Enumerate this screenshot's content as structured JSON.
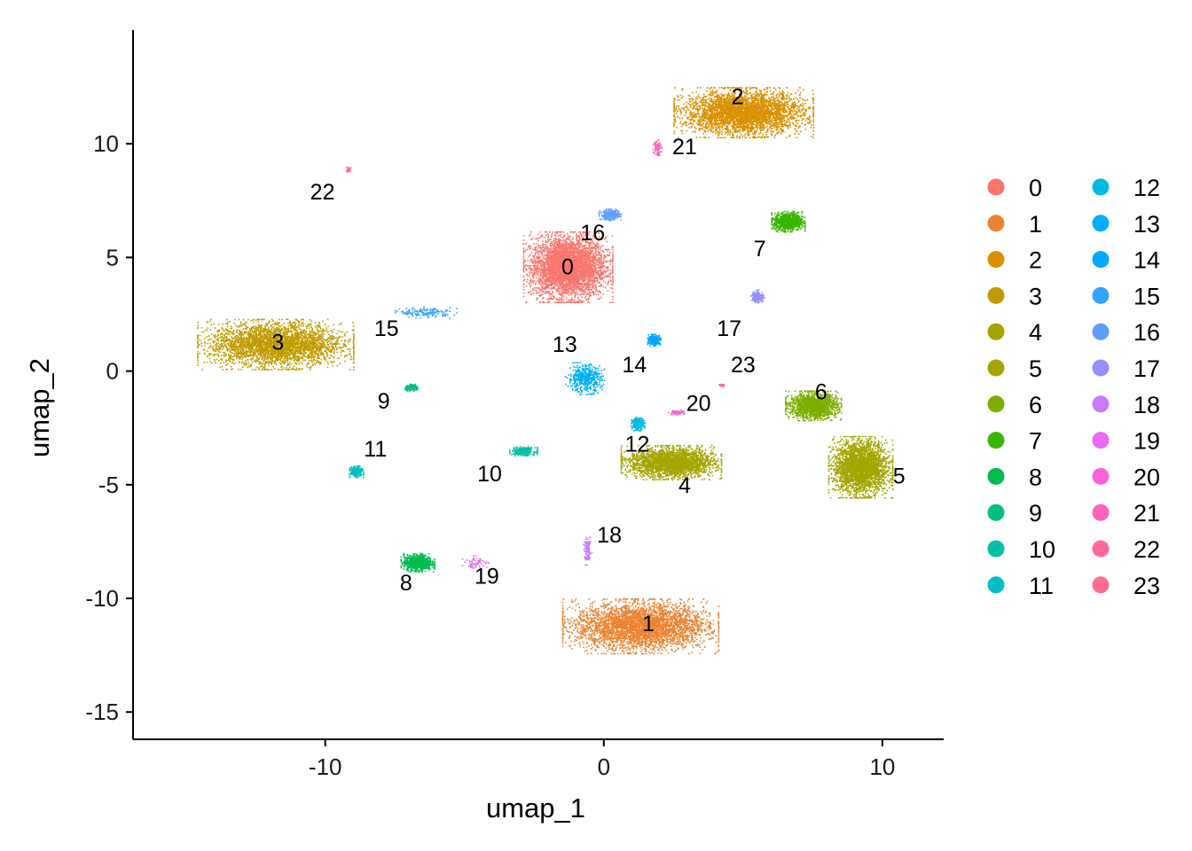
{
  "chart_data": {
    "type": "scatter",
    "title": "",
    "xlabel": "umap_1",
    "ylabel": "umap_2",
    "xlim": [
      -16.9,
      12.2
    ],
    "ylim": [
      -16.2,
      15.0
    ],
    "xticks": [
      -10,
      0,
      10
    ],
    "xtick_labels": [
      "-10",
      "0",
      "10"
    ],
    "yticks": [
      -15,
      -10,
      -5,
      0,
      5,
      10
    ],
    "ytick_labels": [
      "-15",
      "-10",
      "-5",
      "0",
      "5",
      "10"
    ],
    "grid": false,
    "legend_position": "right",
    "legend_columns": 2,
    "clusters": [
      {
        "id": "0",
        "label": "0",
        "color": "#F8766D",
        "center": [
          -1.3,
          4.6
        ],
        "spread": [
          3.2,
          3.1
        ],
        "n": 4200,
        "label_pos": [
          -1.3,
          4.6
        ]
      },
      {
        "id": "1",
        "label": "1",
        "color": "#EA8331",
        "center": [
          1.3,
          -11.2
        ],
        "spread": [
          5.6,
          2.4
        ],
        "n": 3800,
        "label_pos": [
          1.6,
          -11.1
        ]
      },
      {
        "id": "2",
        "label": "2",
        "color": "#D89000",
        "center": [
          5.0,
          11.4
        ],
        "spread": [
          5.0,
          2.2
        ],
        "n": 3600,
        "label_pos": [
          4.8,
          12.1
        ]
      },
      {
        "id": "3",
        "label": "3",
        "color": "#C09B00",
        "center": [
          -11.8,
          1.2
        ],
        "spread": [
          5.6,
          2.2
        ],
        "n": 3400,
        "label_pos": [
          -11.7,
          1.3
        ]
      },
      {
        "id": "4",
        "label": "4",
        "color": "#A3A500",
        "center": [
          2.4,
          -4.0
        ],
        "spread": [
          3.6,
          1.5
        ],
        "n": 2600,
        "label_pos": [
          2.9,
          -5.0
        ]
      },
      {
        "id": "5",
        "label": "5",
        "color": "#A3A500",
        "center": [
          9.2,
          -4.2
        ],
        "spread": [
          2.3,
          2.7
        ],
        "n": 2800,
        "label_pos": [
          10.6,
          -4.6
        ]
      },
      {
        "id": "6",
        "label": "6",
        "color": "#7CAE00",
        "center": [
          7.5,
          -1.5
        ],
        "spread": [
          2.0,
          1.3
        ],
        "n": 1600,
        "label_pos": [
          7.8,
          -0.9
        ]
      },
      {
        "id": "7",
        "label": "7",
        "color": "#39B600",
        "center": [
          6.6,
          6.6
        ],
        "spread": [
          1.2,
          0.9
        ],
        "n": 900,
        "label_pos": [
          5.6,
          5.4
        ]
      },
      {
        "id": "8",
        "label": "8",
        "color": "#00BB4E",
        "center": [
          -6.7,
          -8.4
        ],
        "spread": [
          1.2,
          0.8
        ],
        "n": 800,
        "label_pos": [
          -7.1,
          -9.3
        ]
      },
      {
        "id": "9",
        "label": "9",
        "color": "#00BF7D",
        "center": [
          -6.9,
          -0.7
        ],
        "spread": [
          0.6,
          0.3
        ],
        "n": 120,
        "label_pos": [
          -7.9,
          -1.3
        ]
      },
      {
        "id": "10",
        "label": "10",
        "color": "#00C1A3",
        "center": [
          -2.9,
          -3.5
        ],
        "spread": [
          1.0,
          0.4
        ],
        "n": 260,
        "label_pos": [
          -4.1,
          -4.5
        ]
      },
      {
        "id": "11",
        "label": "11",
        "color": "#00BFC4",
        "center": [
          -8.9,
          -4.4
        ],
        "spread": [
          0.5,
          0.5
        ],
        "n": 320,
        "label_pos": [
          -8.2,
          -3.4
        ]
      },
      {
        "id": "12",
        "label": "12",
        "color": "#00BAE0",
        "center": [
          1.2,
          -2.3
        ],
        "spread": [
          0.5,
          0.6
        ],
        "n": 260,
        "label_pos": [
          1.2,
          -3.2
        ]
      },
      {
        "id": "13",
        "label": "13",
        "color": "#00B0F6",
        "center": [
          -0.7,
          -0.3
        ],
        "spread": [
          1.4,
          1.4
        ],
        "n": 500,
        "label_pos": [
          -1.4,
          1.2
        ]
      },
      {
        "id": "14",
        "label": "14",
        "color": "#00A9FF",
        "center": [
          1.8,
          1.4
        ],
        "spread": [
          0.5,
          0.5
        ],
        "n": 260,
        "label_pos": [
          1.1,
          0.3
        ]
      },
      {
        "id": "15",
        "label": "15",
        "color": "#35A2FF",
        "center": [
          -6.4,
          2.6
        ],
        "spread": [
          2.2,
          0.5
        ],
        "n": 160,
        "label_pos": [
          -7.8,
          1.9
        ]
      },
      {
        "id": "16",
        "label": "16",
        "color": "#619CFF",
        "center": [
          0.2,
          6.9
        ],
        "spread": [
          0.8,
          0.5
        ],
        "n": 320,
        "label_pos": [
          -0.4,
          6.1
        ]
      },
      {
        "id": "17",
        "label": "17",
        "color": "#9590FF",
        "center": [
          5.5,
          3.3
        ],
        "spread": [
          0.5,
          0.6
        ],
        "n": 160,
        "label_pos": [
          4.5,
          1.9
        ]
      },
      {
        "id": "18",
        "label": "18",
        "color": "#C77CFF",
        "center": [
          -0.6,
          -7.9
        ],
        "spread": [
          0.3,
          1.2
        ],
        "n": 120,
        "label_pos": [
          0.2,
          -7.2
        ]
      },
      {
        "id": "19",
        "label": "19",
        "color": "#E76BF3",
        "center": [
          -4.6,
          -8.4
        ],
        "spread": [
          1.0,
          0.6
        ],
        "n": 60,
        "label_pos": [
          -4.2,
          -9.0
        ]
      },
      {
        "id": "20",
        "label": "20",
        "color": "#FA62DB",
        "center": [
          2.6,
          -1.8
        ],
        "spread": [
          0.6,
          0.2
        ],
        "n": 80,
        "label_pos": [
          3.4,
          -1.4
        ]
      },
      {
        "id": "21",
        "label": "21",
        "color": "#FF62BC",
        "center": [
          1.9,
          9.9
        ],
        "spread": [
          0.3,
          0.9
        ],
        "n": 80,
        "label_pos": [
          2.9,
          9.9
        ]
      },
      {
        "id": "22",
        "label": "22",
        "color": "#FF6A98",
        "center": [
          -9.2,
          8.9
        ],
        "spread": [
          0.2,
          0.3
        ],
        "n": 30,
        "label_pos": [
          -10.1,
          7.9
        ]
      },
      {
        "id": "23",
        "label": "23",
        "color": "#FF6C91",
        "center": [
          4.2,
          -0.6
        ],
        "spread": [
          0.2,
          0.2
        ],
        "n": 30,
        "label_pos": [
          5.0,
          0.3
        ]
      }
    ]
  }
}
